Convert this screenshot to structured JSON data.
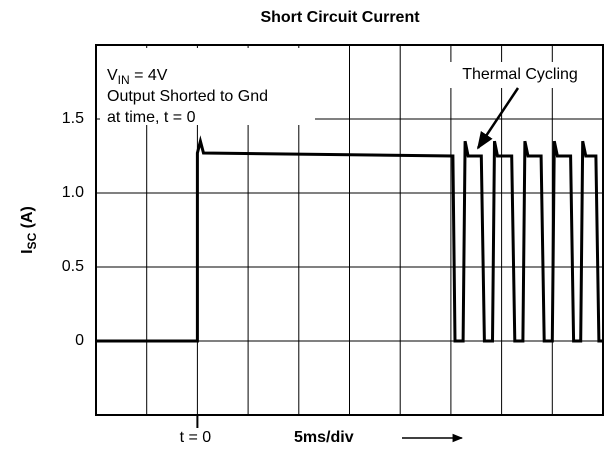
{
  "chart_data": {
    "type": "line",
    "title": "Short Circuit Current",
    "x_label": "5ms/div",
    "y_label": [
      "I",
      "SC",
      " (A)"
    ],
    "annotations": {
      "vin": [
        "V",
        "IN",
        " = 4V"
      ],
      "line2": "Output Shorted to Gnd",
      "line3": "at time, t = 0",
      "arrow_label": "Thermal Cycling"
    },
    "xlim": [
      -10,
      40
    ],
    "ylim": [
      -0.5,
      2.0
    ],
    "xticks": [
      {
        "value": 0,
        "label": "t = 0"
      }
    ],
    "xgrid": [
      -5,
      0,
      5,
      10,
      15,
      20,
      25,
      30,
      35
    ],
    "yticks": [
      0,
      0.5,
      {
        "value": 1,
        "label": "1.0"
      },
      1.5
    ],
    "grid": true,
    "series": [
      {
        "name": "Isc",
        "color": "#000000",
        "x": [
          -10,
          0,
          0,
          0.3,
          0.6,
          25.2,
          25.4,
          26.2,
          26.4,
          26.7,
          28.0,
          28.3,
          29.1,
          29.3,
          29.6,
          31.0,
          31.3,
          32.1,
          32.3,
          32.6,
          33.9,
          34.2,
          35.0,
          35.2,
          35.5,
          36.8,
          37.1,
          37.8,
          38.0,
          38.3,
          39.3,
          39.6,
          40
        ],
        "values": [
          0,
          0,
          1.27,
          1.35,
          1.27,
          1.25,
          0,
          0,
          1.35,
          1.25,
          1.25,
          0,
          0,
          1.35,
          1.25,
          1.25,
          0,
          0,
          1.35,
          1.25,
          1.25,
          0,
          0,
          1.35,
          1.25,
          1.25,
          0,
          0,
          1.35,
          1.25,
          1.25,
          0,
          0
        ]
      }
    ]
  }
}
